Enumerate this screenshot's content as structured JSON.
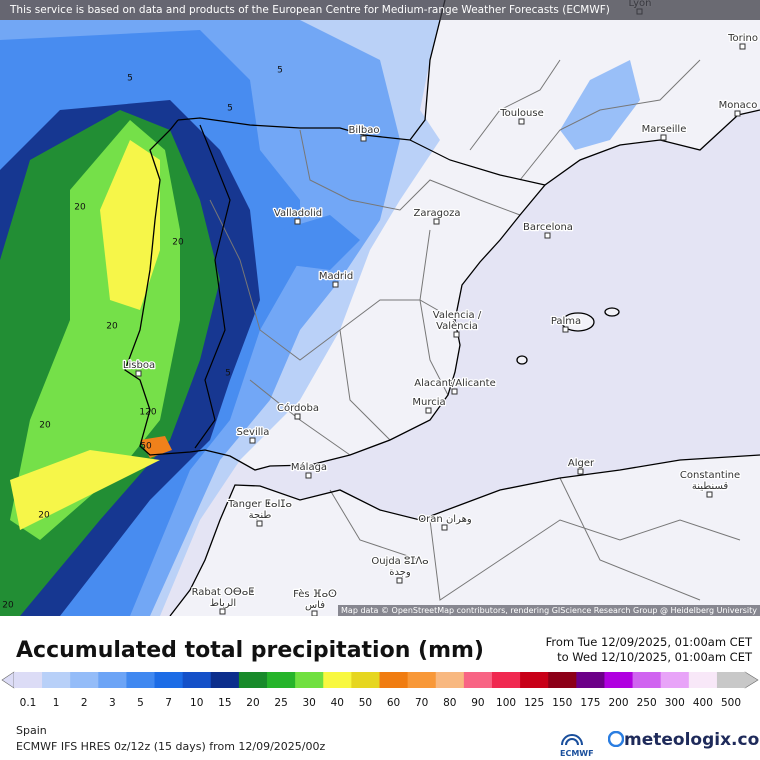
{
  "header": {
    "notice": "This service is based on data and products of the European Centre for Medium-range Weather Forecasts (ECMWF)"
  },
  "map": {
    "cities": [
      {
        "label": [
          "Lyon"
        ]
      },
      {
        "label": [
          "Torino"
        ]
      },
      {
        "label": [
          "Monaco"
        ]
      },
      {
        "label": [
          "Toulouse"
        ]
      },
      {
        "label": [
          "Marseille"
        ]
      },
      {
        "label": [
          "Bilbao"
        ]
      },
      {
        "label": [
          "Valladolid"
        ]
      },
      {
        "label": [
          "Zaragoza"
        ]
      },
      {
        "label": [
          "Barcelona"
        ]
      },
      {
        "label": [
          "Madrid"
        ]
      },
      {
        "label": [
          "Palma"
        ]
      },
      {
        "label": [
          "Valencia /",
          "València"
        ]
      },
      {
        "label": [
          "Lisboa"
        ]
      },
      {
        "label": [
          "Alacant/Alicante"
        ]
      },
      {
        "label": [
          "Murcia"
        ]
      },
      {
        "label": [
          "Córdoba"
        ]
      },
      {
        "label": [
          "Sevilla"
        ]
      },
      {
        "label": [
          "Málaga"
        ]
      },
      {
        "label": [
          "Alger"
        ]
      },
      {
        "label": [
          "Constantine",
          "قسنطينة"
        ]
      },
      {
        "label": [
          "Tanger ⵟⴰⵏⵊⴰ",
          "طنجة"
        ]
      },
      {
        "label": [
          "Oran وهران"
        ]
      },
      {
        "label": [
          "Oujda ⵓⵊⴷⴰ",
          "وجدة"
        ]
      },
      {
        "label": [
          "Rabat ⵔⴱⴰⵟ",
          "الرباط"
        ]
      },
      {
        "label": [
          "Fès ⴼⴰⵙ",
          "فاس"
        ]
      }
    ],
    "contour_labels": [
      "5",
      "5",
      "5",
      "20",
      "20",
      "20",
      "20",
      "20",
      "20",
      "120",
      "50",
      "5"
    ],
    "credit": "Map data © OpenStreetMap contributors, rendering GIScience Research Group @ Heidelberg University"
  },
  "footer": {
    "title": "Accumulated total precipitation (mm)",
    "from": "From Tue 12/09/2025, 01:00am CET",
    "to": "to Wed 12/10/2025, 01:00am CET",
    "legend": [
      {
        "value": 0.1,
        "color": "#dcdcf6"
      },
      {
        "value": 1,
        "color": "#b8d0f8"
      },
      {
        "value": 2,
        "color": "#94bcf8"
      },
      {
        "value": 3,
        "color": "#6ca4f6"
      },
      {
        "value": 5,
        "color": "#4088f0"
      },
      {
        "value": 7,
        "color": "#1c6ce6"
      },
      {
        "value": 10,
        "color": "#1450c8"
      },
      {
        "value": 15,
        "color": "#0c2e8c"
      },
      {
        "value": 20,
        "color": "#188a2a"
      },
      {
        "value": 25,
        "color": "#26b42a"
      },
      {
        "value": 30,
        "color": "#70e040"
      },
      {
        "value": 40,
        "color": "#f8f840"
      },
      {
        "value": 50,
        "color": "#e6d620"
      },
      {
        "value": 60,
        "color": "#f07c10"
      },
      {
        "value": 70,
        "color": "#f89838"
      },
      {
        "value": 80,
        "color": "#f8b880"
      },
      {
        "value": 90,
        "color": "#f86484"
      },
      {
        "value": 100,
        "color": "#f02850"
      },
      {
        "value": 125,
        "color": "#c80018"
      },
      {
        "value": 150,
        "color": "#8c0018"
      },
      {
        "value": 175,
        "color": "#6c0088"
      },
      {
        "value": 200,
        "color": "#b000e0"
      },
      {
        "value": 250,
        "color": "#d064f0"
      },
      {
        "value": 300,
        "color": "#e8a4f8"
      },
      {
        "value": 400,
        "color": "#f8e8f8"
      },
      {
        "value": 500,
        "color": "#c8c8c8"
      }
    ],
    "region": "Spain",
    "model": "ECMWF IFS HRES 0z/12z (15 days) from  12/09/2025/00z",
    "logo_small": "ECMWF",
    "brand": "meteologix.com"
  }
}
